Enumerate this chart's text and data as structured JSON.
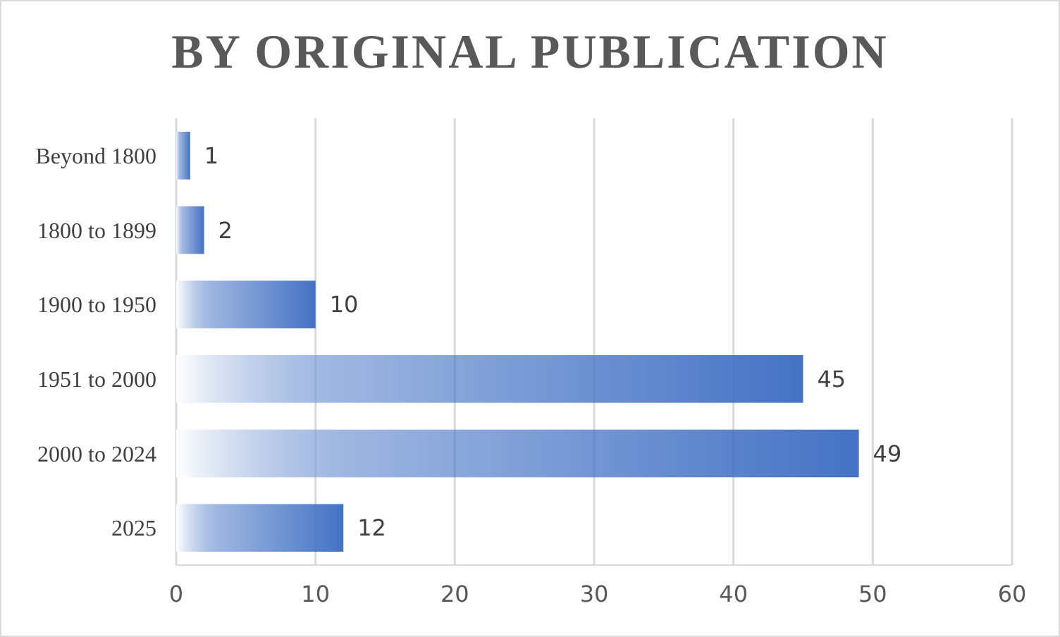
{
  "chart_data": {
    "type": "bar",
    "orientation": "horizontal",
    "title": "BY ORIGINAL PUBLICATION",
    "categories": [
      "Beyond 1800",
      "1800 to 1899",
      "1900 to 1950",
      "1951 to 2000",
      "2000 to 2024",
      "2025"
    ],
    "values": [
      1,
      2,
      10,
      45,
      49,
      12
    ],
    "color": "#4472c4",
    "xlim": [
      0,
      60
    ],
    "xticks": [
      0,
      10,
      20,
      30,
      40,
      50,
      60
    ],
    "grid": "x",
    "data_labels": true
  }
}
